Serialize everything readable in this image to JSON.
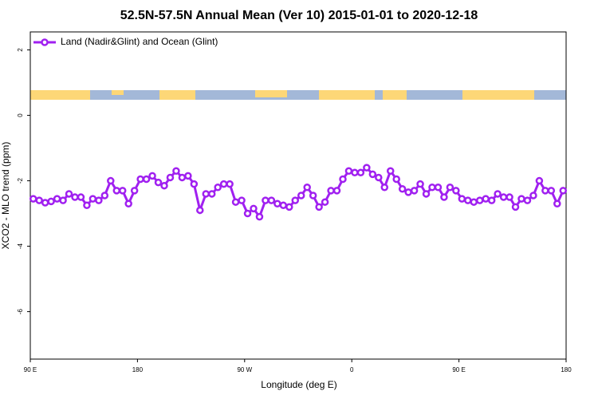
{
  "chart_data": {
    "type": "line",
    "title": "52.5N-57.5N Annual Mean (Ver 10)   2015-01-01 to 2020-12-18",
    "xlabel": "Longitude (deg E)",
    "ylabel": "XCO2 - MLO trend (ppm)",
    "xlim": [
      90,
      540
    ],
    "ylim": [
      -7.45,
      2.55
    ],
    "xticks": [
      {
        "value": 90,
        "label": "90 E"
      },
      180,
      {
        "value": 270,
        "label": "90 W"
      },
      {
        "value": 360,
        "label": "0"
      },
      {
        "value": 450,
        "label": "90 E"
      },
      {
        "value": 540,
        "label": "180"
      }
    ],
    "yticks": [
      -6,
      -4,
      -2,
      0,
      2
    ],
    "legend": "top-left",
    "x": [
      92.5,
      97.5,
      102.5,
      107.5,
      112.5,
      117.5,
      122.5,
      127.5,
      132.5,
      137.5,
      142.5,
      147.5,
      152.5,
      157.5,
      162.5,
      167.5,
      172.5,
      177.5,
      182.5,
      187.5,
      192.5,
      197.5,
      202.5,
      207.5,
      212.5,
      217.5,
      222.5,
      227.5,
      232.5,
      237.5,
      242.5,
      247.5,
      252.5,
      257.5,
      262.5,
      267.5,
      272.5,
      277.5,
      282.5,
      287.5,
      292.5,
      297.5,
      302.5,
      307.5,
      312.5,
      317.5,
      322.5,
      327.5,
      332.5,
      337.5,
      342.5,
      347.5,
      352.5,
      357.5,
      362.5,
      367.5,
      372.5,
      377.5,
      382.5,
      387.5,
      392.5,
      397.5,
      402.5,
      407.5,
      412.5,
      417.5,
      422.5,
      427.5,
      432.5,
      437.5,
      442.5,
      447.5,
      452.5,
      457.5,
      462.5,
      467.5,
      472.5,
      477.5,
      482.5,
      487.5,
      492.5,
      497.5,
      502.5,
      507.5,
      512.5,
      517.5,
      522.5,
      527.5,
      532.5,
      537.5
    ],
    "series": [
      {
        "name": "Land (Nadir&Glint) and Ocean (Glint)",
        "color": "#a020f0",
        "values": [
          -2.55,
          -2.6,
          -2.67,
          -2.63,
          -2.55,
          -2.6,
          -2.4,
          -2.5,
          -2.5,
          -2.75,
          -2.55,
          -2.6,
          -2.45,
          -2.0,
          -2.3,
          -2.3,
          -2.7,
          -2.3,
          -1.95,
          -1.95,
          -1.85,
          -2.05,
          -2.15,
          -1.9,
          -1.7,
          -1.9,
          -1.85,
          -2.1,
          -2.9,
          -2.4,
          -2.4,
          -2.2,
          -2.1,
          -2.1,
          -2.65,
          -2.6,
          -3.0,
          -2.85,
          -3.1,
          -2.6,
          -2.6,
          -2.7,
          -2.75,
          -2.8,
          -2.6,
          -2.45,
          -2.2,
          -2.45,
          -2.8,
          -2.65,
          -2.3,
          -2.3,
          -1.95,
          -1.7,
          -1.75,
          -1.75,
          -1.6,
          -1.8,
          -1.9,
          -2.2,
          -1.7,
          -1.95,
          -2.25,
          -2.35,
          -2.3,
          -2.1,
          -2.4,
          -2.2,
          -2.2,
          -2.5,
          -2.2,
          -2.3,
          -2.55,
          -2.6,
          -2.65,
          -2.6,
          -2.55,
          -2.6,
          -2.4,
          -2.5,
          -2.5,
          -2.8,
          -2.55,
          -2.6,
          -2.45,
          -2.0,
          -2.3,
          -2.3,
          -2.7,
          -2.3
        ]
      }
    ]
  }
}
